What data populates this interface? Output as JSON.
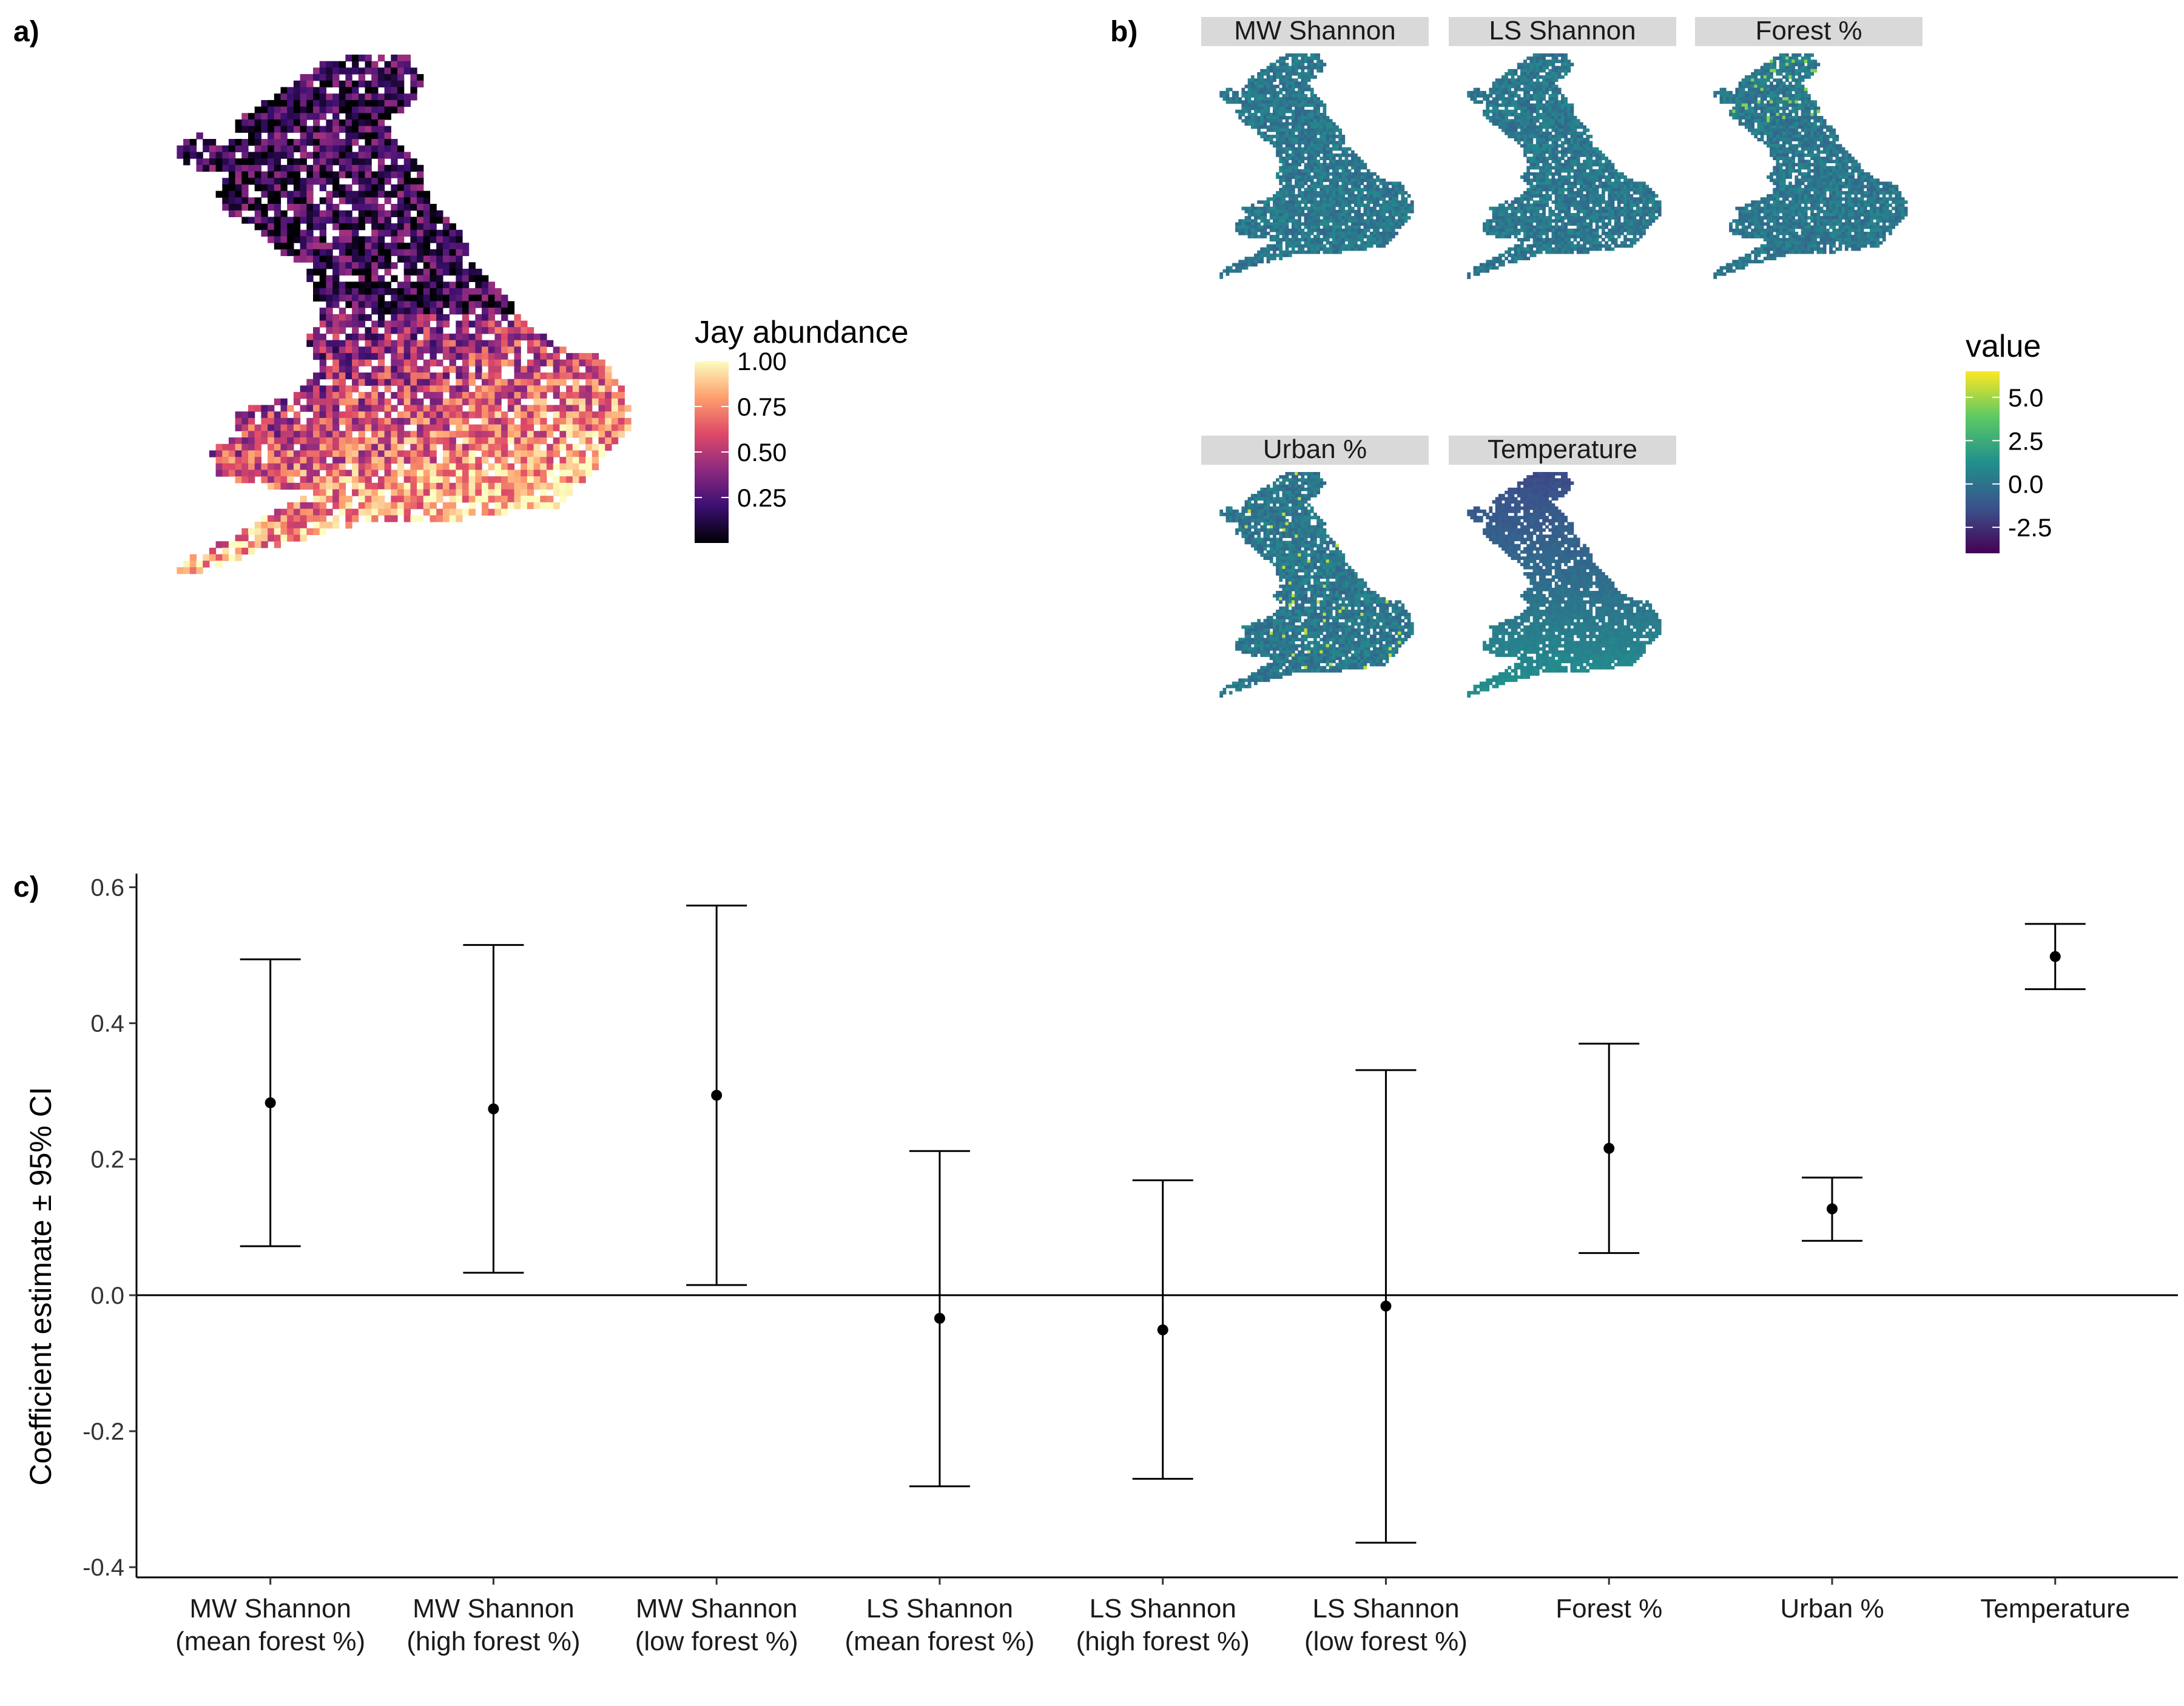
{
  "panels": {
    "a": "a)",
    "b": "b)",
    "c": "c)"
  },
  "map_a": {
    "legend_title": "Jay abundance",
    "legend_ticks": [
      "1.00",
      "0.75",
      "0.50",
      "0.25"
    ],
    "legend_tick_values": [
      1.0,
      0.75,
      0.5,
      0.25
    ],
    "legend_range": [
      0.0,
      1.0
    ],
    "palette": "magma",
    "colors": [
      "#000004",
      "#3b0f70",
      "#8c2981",
      "#de4968",
      "#fe9f6d",
      "#fcfdbf"
    ]
  },
  "maps_b": {
    "facets": [
      "MW Shannon",
      "LS Shannon",
      "Forest %",
      "Urban %",
      "Temperature"
    ],
    "legend_title": "value",
    "legend_ticks": [
      "5.0",
      "2.5",
      "0.0",
      "-2.5"
    ],
    "legend_tick_values": [
      5.0,
      2.5,
      0.0,
      -2.5
    ],
    "legend_range": [
      -4.0,
      6.5
    ],
    "palette": "viridis",
    "colors": [
      "#440154",
      "#3b528b",
      "#21908d",
      "#5dc963",
      "#fde725"
    ]
  },
  "chart_data": {
    "type": "scatter",
    "subtype": "point-errorbar",
    "ylabel": "Coefficient estimate ± 95% CI",
    "xlabel": "",
    "ylim": [
      -0.4,
      0.62
    ],
    "yticks": [
      "-0.4",
      "-0.2",
      "0.0",
      "0.2",
      "0.4",
      "0.6"
    ],
    "ytick_values": [
      -0.4,
      -0.2,
      0.0,
      0.2,
      0.4,
      0.6
    ],
    "reference_line": 0.0,
    "categories": [
      [
        "MW Shannon",
        "(mean forest %)"
      ],
      [
        "MW Shannon",
        "(high forest %)"
      ],
      [
        "MW Shannon",
        "(low forest %)"
      ],
      [
        "LS Shannon",
        "(mean forest %)"
      ],
      [
        "LS Shannon",
        "(high forest %)"
      ],
      [
        "LS Shannon",
        "(low forest %)"
      ],
      [
        "Forest %"
      ],
      [
        "Urban %"
      ],
      [
        "Temperature"
      ]
    ],
    "estimate": [
      0.283,
      0.274,
      0.294,
      -0.034,
      -0.051,
      -0.016,
      0.216,
      0.127,
      0.498
    ],
    "lower": [
      0.072,
      0.033,
      0.015,
      -0.281,
      -0.27,
      -0.364,
      0.062,
      0.08,
      0.45
    ],
    "upper": [
      0.494,
      0.515,
      0.573,
      0.212,
      0.169,
      0.331,
      0.37,
      0.173,
      0.546
    ],
    "grid": false
  }
}
